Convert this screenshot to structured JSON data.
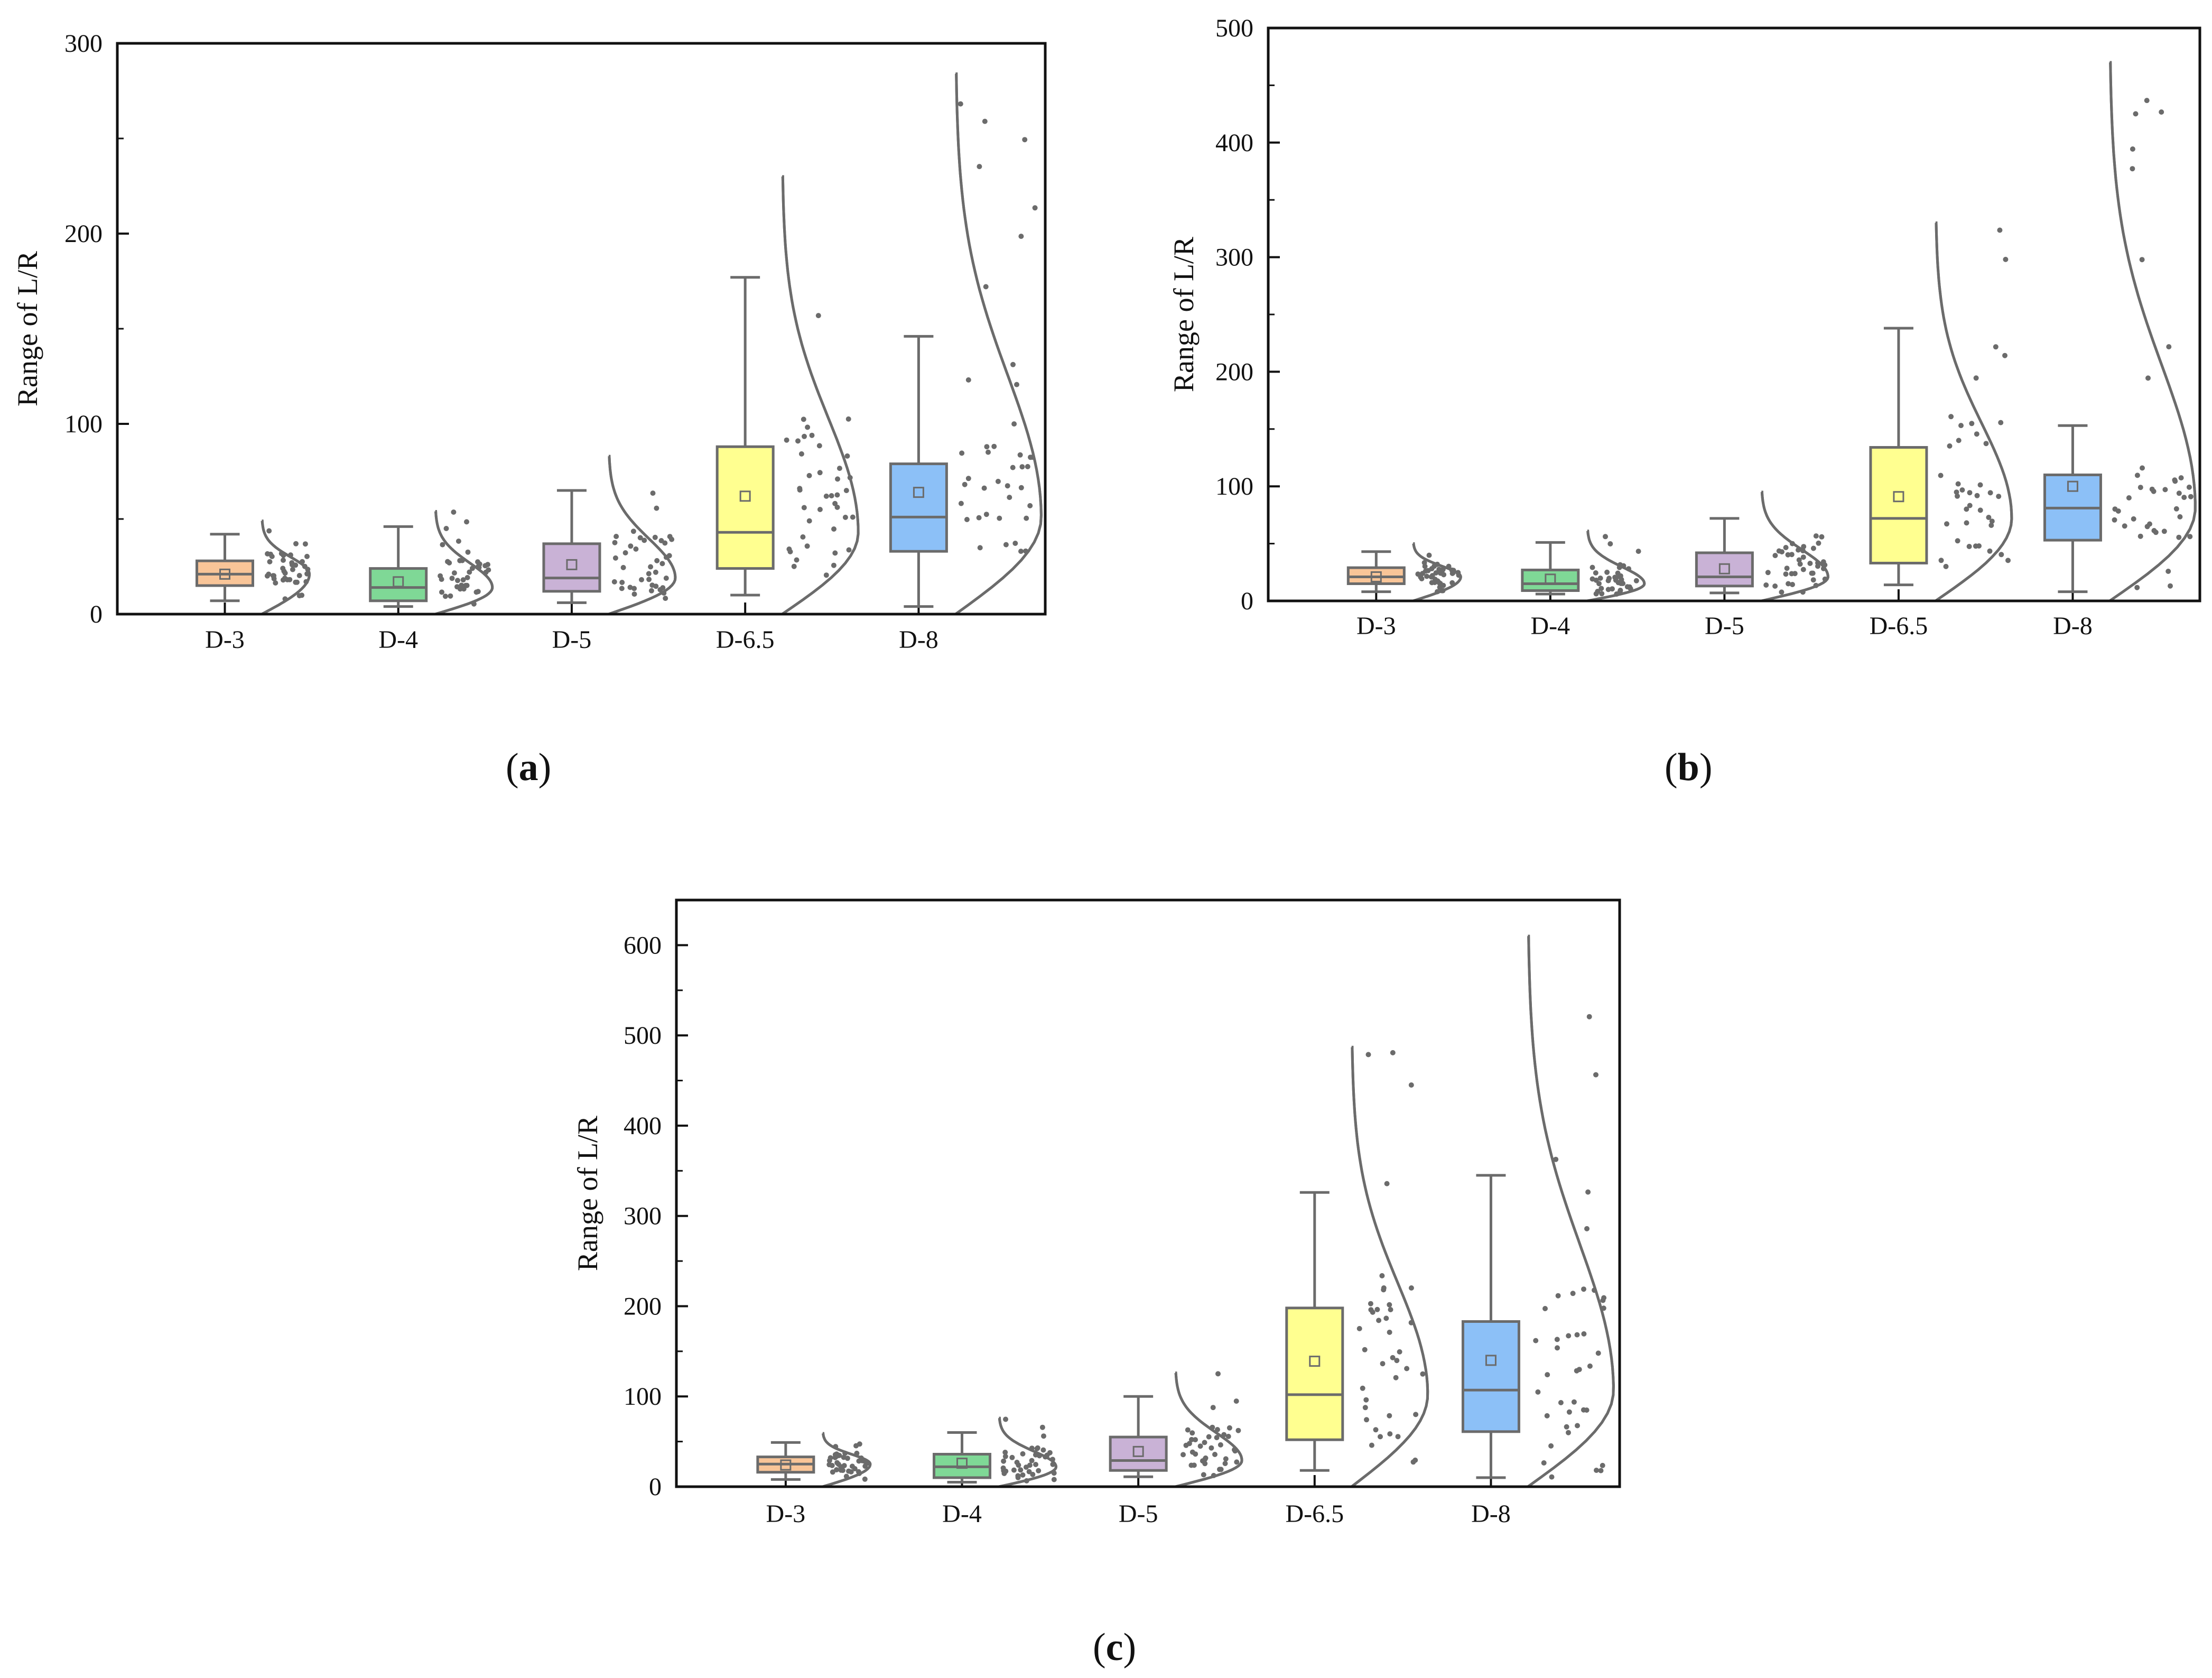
{
  "figure": {
    "panels": [
      {
        "caption_open": "(",
        "caption_letter": "a",
        "caption_close": ")"
      },
      {
        "caption_open": "(",
        "caption_letter": "b",
        "caption_close": ")"
      },
      {
        "caption_open": "(",
        "caption_letter": "c",
        "caption_close": ")"
      }
    ]
  },
  "chart_data": [
    {
      "type": "box",
      "panel": "a",
      "ylabel": "Range of L/R",
      "xlabel": "",
      "ylim": [
        0,
        300
      ],
      "yticks": [
        0,
        100,
        200,
        300
      ],
      "categories": [
        "D-3",
        "D-4",
        "D-5",
        "D-6.5",
        "D-8"
      ],
      "colors": [
        "#f9c598",
        "#7fd896",
        "#c9b2d6",
        "#ffff90",
        "#8cc0f7"
      ],
      "boxes": [
        {
          "min": 7,
          "q1": 15,
          "median": 21,
          "q3": 28,
          "max": 42,
          "mean": 21
        },
        {
          "min": 4,
          "q1": 7,
          "median": 14,
          "q3": 24,
          "max": 46,
          "mean": 17
        },
        {
          "min": 6,
          "q1": 12,
          "median": 19,
          "q3": 37,
          "max": 65,
          "mean": 26
        },
        {
          "min": 10,
          "q1": 24,
          "median": 43,
          "q3": 88,
          "max": 177,
          "mean": 62
        },
        {
          "min": 4,
          "q1": 33,
          "median": 51,
          "q3": 79,
          "max": 146,
          "mean": 64
        }
      ],
      "dist_max": [
        49,
        54,
        83,
        230,
        284
      ]
    },
    {
      "type": "box",
      "panel": "b",
      "ylabel": "Range of L/R",
      "xlabel": "",
      "ylim": [
        0,
        500
      ],
      "yticks": [
        0,
        100,
        200,
        300,
        400,
        500
      ],
      "categories": [
        "D-3",
        "D-4",
        "D-5",
        "D-6.5",
        "D-8"
      ],
      "colors": [
        "#f9c598",
        "#7fd896",
        "#c9b2d6",
        "#ffff90",
        "#8cc0f7"
      ],
      "boxes": [
        {
          "min": 8,
          "q1": 15,
          "median": 21,
          "q3": 29,
          "max": 43,
          "mean": 21
        },
        {
          "min": 6,
          "q1": 9,
          "median": 15,
          "q3": 27,
          "max": 51,
          "mean": 19
        },
        {
          "min": 7,
          "q1": 13,
          "median": 21,
          "q3": 42,
          "max": 72,
          "mean": 28
        },
        {
          "min": 14,
          "q1": 33,
          "median": 72,
          "q3": 134,
          "max": 238,
          "mean": 91
        },
        {
          "min": 8,
          "q1": 53,
          "median": 81,
          "q3": 110,
          "max": 153,
          "mean": 100
        }
      ],
      "dist_max": [
        50,
        61,
        95,
        330,
        470
      ]
    },
    {
      "type": "box",
      "panel": "c",
      "ylabel": "Range of L/R",
      "xlabel": "",
      "ylim": [
        0,
        650
      ],
      "yticks": [
        0,
        100,
        200,
        300,
        400,
        500,
        600
      ],
      "categories": [
        "D-3",
        "D-4",
        "D-5",
        "D-6.5",
        "D-8"
      ],
      "colors": [
        "#f9c598",
        "#7fd896",
        "#c9b2d6",
        "#ffff90",
        "#8cc0f7"
      ],
      "boxes": [
        {
          "min": 8,
          "q1": 16,
          "median": 25,
          "q3": 33,
          "max": 49,
          "mean": 24
        },
        {
          "min": 5,
          "q1": 10,
          "median": 22,
          "q3": 36,
          "max": 60,
          "mean": 26
        },
        {
          "min": 11,
          "q1": 18,
          "median": 29,
          "q3": 55,
          "max": 100,
          "mean": 39
        },
        {
          "min": 18,
          "q1": 52,
          "median": 102,
          "q3": 198,
          "max": 326,
          "mean": 139
        },
        {
          "min": 10,
          "q1": 61,
          "median": 107,
          "q3": 183,
          "max": 345,
          "mean": 140
        }
      ],
      "dist_max": [
        59,
        76,
        126,
        487,
        610
      ]
    }
  ]
}
